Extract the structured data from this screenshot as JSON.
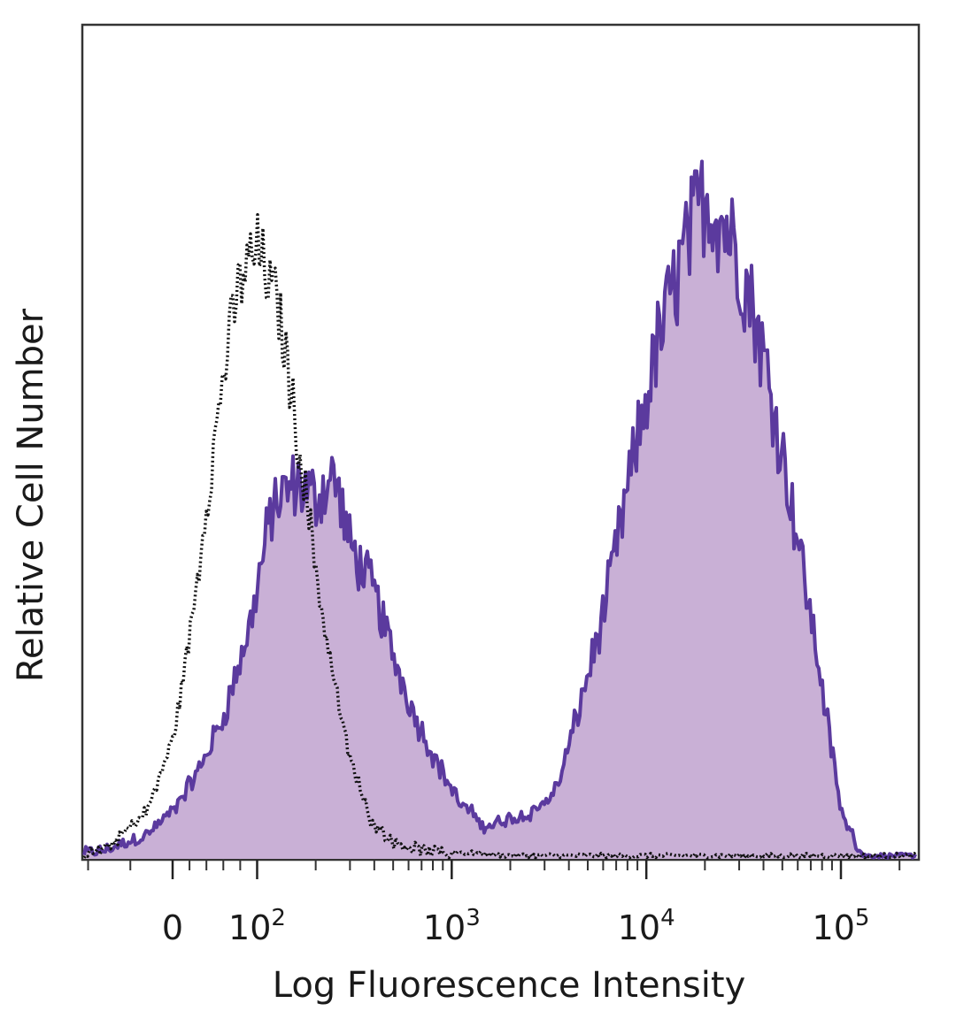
{
  "chart_data": {
    "type": "area",
    "xlabel": "Log Fluorescence Intensity",
    "ylabel": "Relative Cell Number",
    "x_scale": "biexponential",
    "ylim": [
      0,
      100
    ],
    "x_tick_labels": [
      {
        "value": 0,
        "base": "0",
        "exp": ""
      },
      {
        "value": 100,
        "base": "10",
        "exp": "2"
      },
      {
        "value": 1000,
        "base": "10",
        "exp": "3"
      },
      {
        "value": 10000,
        "base": "10",
        "exp": "4"
      },
      {
        "value": 100000,
        "base": "10",
        "exp": "5"
      }
    ],
    "grid": false,
    "legend": "none",
    "series": [
      {
        "role": "isotype-control",
        "style": "dotted",
        "color": "#111111",
        "x": [
          -150,
          -80,
          -30,
          0,
          20,
          40,
          60,
          80,
          100,
          130,
          170,
          220,
          290,
          380,
          500,
          700,
          1000,
          2000,
          5000,
          20000,
          100000,
          250000
        ],
        "y": [
          0,
          1,
          6,
          15,
          28,
          45,
          62,
          74,
          78,
          70,
          50,
          30,
          14,
          5,
          2,
          1,
          0.5,
          0,
          0,
          0,
          0,
          0
        ]
      },
      {
        "role": "stained",
        "style": "filled",
        "color": "#5b3a9e",
        "fill": "#c9b0d6",
        "x": [
          -150,
          -80,
          -30,
          0,
          30,
          60,
          90,
          120,
          160,
          200,
          250,
          300,
          400,
          500,
          650,
          850,
          1100,
          1500,
          2000,
          2700,
          3500,
          4500,
          6000,
          8000,
          11000,
          15000,
          20000,
          27000,
          35000,
          45000,
          60000,
          80000,
          100000,
          130000,
          250000
        ],
        "y": [
          0,
          1,
          3,
          6,
          11,
          18,
          29,
          45,
          48,
          46,
          49,
          40,
          34,
          26,
          18,
          12,
          7,
          4,
          5,
          6,
          9,
          19,
          31,
          47,
          64,
          76,
          85,
          80,
          71,
          58,
          41,
          22,
          6,
          0,
          0
        ]
      }
    ]
  }
}
